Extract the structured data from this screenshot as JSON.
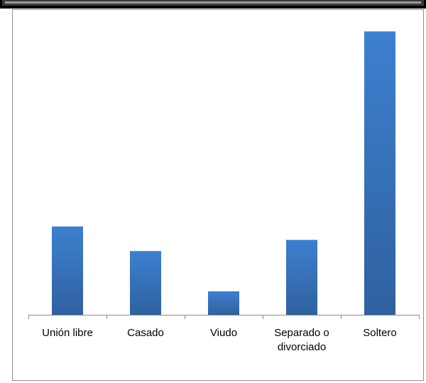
{
  "chart_data": {
    "type": "bar",
    "categories": [
      "Unión libre",
      "Casado",
      "Viudo",
      "Separado o divorciado",
      "Soltero"
    ],
    "category_lines": [
      [
        "Unión libre"
      ],
      [
        "Casado"
      ],
      [
        "Viudo"
      ],
      [
        "Separado o",
        "divorciado"
      ],
      [
        "Soltero"
      ]
    ],
    "values": [
      15.8,
      11.4,
      4.2,
      13.4,
      50.7
    ],
    "ylim": [
      0,
      52
    ],
    "grid": false,
    "legend": "none",
    "title": "",
    "xlabel": "",
    "ylabel": "",
    "bar_color_top": "#3d80d0",
    "bar_color_bottom": "#2f619f",
    "axis_color": "#8c8c8c"
  }
}
